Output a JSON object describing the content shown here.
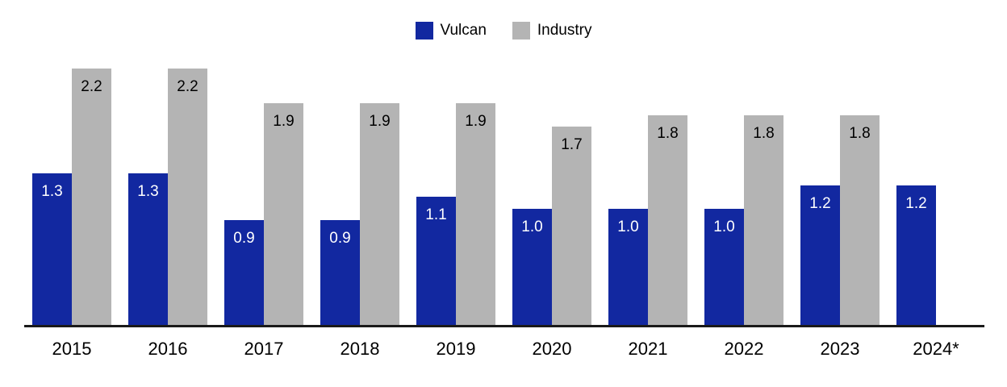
{
  "chart_data": {
    "type": "bar",
    "title": "",
    "xlabel": "",
    "ylabel": "",
    "categories": [
      "2015",
      "2016",
      "2017",
      "2018",
      "2019",
      "2020",
      "2021",
      "2022",
      "2023",
      "2024*"
    ],
    "series": [
      {
        "name": "Vulcan",
        "color": "#1228A0",
        "label_color": "#ffffff",
        "values": [
          1.3,
          1.3,
          0.9,
          0.9,
          1.1,
          1.0,
          1.0,
          1.0,
          1.2,
          1.2
        ]
      },
      {
        "name": "Industry",
        "color": "#B4B4B4",
        "label_color": "#000000",
        "values": [
          2.2,
          2.2,
          1.9,
          1.9,
          1.9,
          1.7,
          1.8,
          1.8,
          1.8,
          null
        ]
      }
    ],
    "value_labels": "inside-top",
    "value_format": "1-decimal",
    "ylim": [
      0,
      2.2
    ],
    "grid": false,
    "y_axis_shown": false,
    "legend_position": "top-center",
    "axis_line_color": "#1a1a1a"
  }
}
